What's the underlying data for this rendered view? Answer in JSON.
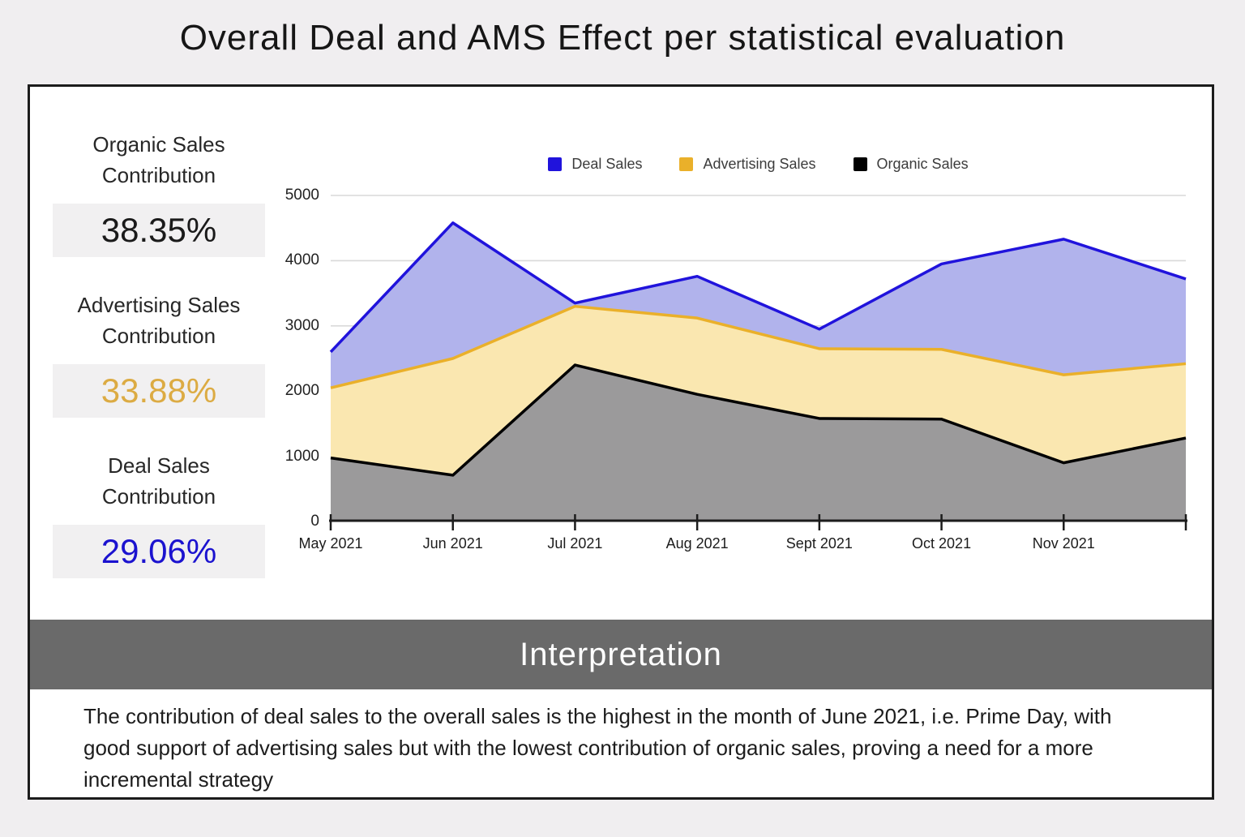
{
  "page": {
    "title": "Overall Deal and AMS Effect per statistical evaluation",
    "background": "#f0eef0"
  },
  "stats": [
    {
      "label": "Organic Sales Contribution",
      "value": "38.35%",
      "color": "#1a1a1a"
    },
    {
      "label": "Advertising Sales Contribution",
      "value": "33.88%",
      "color": "#dcab43"
    },
    {
      "label": "Deal Sales Contribution",
      "value": "29.06%",
      "color": "#1b12cf"
    }
  ],
  "chart_data": {
    "type": "area",
    "title": "",
    "xlabel": "",
    "ylabel": "",
    "categories": [
      "May 2021",
      "Jun 2021",
      "Jul 2021",
      "Aug 2021",
      "Sept 2021",
      "Oct 2021",
      "Nov 2021",
      ""
    ],
    "series": [
      {
        "name": "Deal Sales",
        "line_color": "#2013dc",
        "fill_color": "#b1b3ec",
        "values": [
          2600,
          4580,
          3350,
          3760,
          2950,
          3950,
          4330,
          3720
        ]
      },
      {
        "name": "Advertising Sales",
        "line_color": "#eab02a",
        "fill_color": "#fae7b0",
        "values": [
          2050,
          2500,
          3300,
          3120,
          2650,
          2640,
          2250,
          2420
        ]
      },
      {
        "name": "Organic Sales",
        "line_color": "#000000",
        "fill_color": "#9b9a9b",
        "values": [
          975,
          710,
          2400,
          1950,
          1580,
          1570,
          900,
          1280
        ]
      }
    ],
    "ylim": [
      0,
      5000
    ],
    "y_ticks": [
      0,
      1000,
      2000,
      3000,
      4000,
      5000
    ],
    "grid": true,
    "legend_position": "top"
  },
  "interpretation": {
    "heading": "Interpretation",
    "text": "The contribution of deal sales to the overall sales is the highest in the month of June 2021, i.e. Prime Day, with good support of advertising sales but with the lowest contribution of organic sales, proving a need for a more incremental strategy"
  }
}
